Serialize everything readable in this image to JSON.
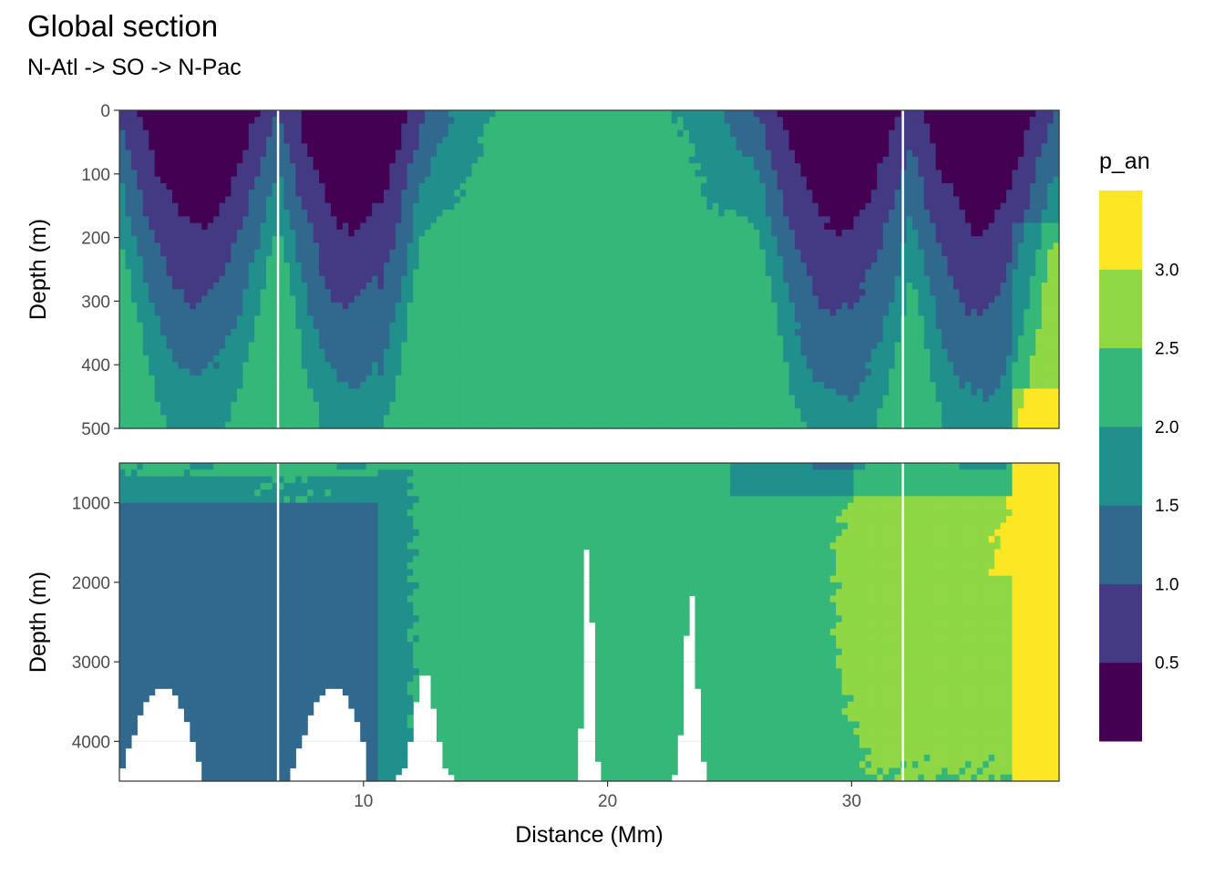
{
  "title": "Global section",
  "subtitle": "N-Atl -> SO -> N-Pac",
  "chart_data": {
    "type": "heatmap",
    "xlabel": "Distance (Mm)",
    "ylabel": "Depth (m)",
    "xlim": [
      0,
      38.5
    ],
    "x_ticks": [
      10,
      20,
      30
    ],
    "x_tick_labels": [
      "10",
      "20",
      "30"
    ],
    "station_gaps_x": [
      6.5,
      32.1
    ],
    "panels": [
      {
        "name": "upper",
        "ylim": [
          0,
          500
        ],
        "y_ticks": [
          0,
          100,
          200,
          300,
          400,
          500
        ],
        "y_tick_labels": [
          "0",
          "100",
          "200",
          "300",
          "400",
          "500"
        ]
      },
      {
        "name": "lower",
        "ylim": [
          500,
          4500
        ],
        "y_ticks": [
          1000,
          2000,
          3000,
          4000
        ],
        "y_tick_labels": [
          "1000",
          "2000",
          "3000",
          "4000"
        ]
      }
    ],
    "legend": {
      "title": "p_an",
      "breaks": [
        0.5,
        1.0,
        1.5,
        2.0,
        2.5,
        3.0
      ],
      "break_labels": [
        "0.5",
        "1.0",
        "1.5",
        "2.0",
        "2.5",
        "3.0"
      ],
      "colors": [
        "#440154",
        "#443A83",
        "#31688E",
        "#21908C",
        "#35B779",
        "#8FD744",
        "#FDE725"
      ]
    }
  },
  "colors": {
    "panel_border": "#333333",
    "grid": "#ebebeb",
    "gap_line": "#ffffff"
  }
}
